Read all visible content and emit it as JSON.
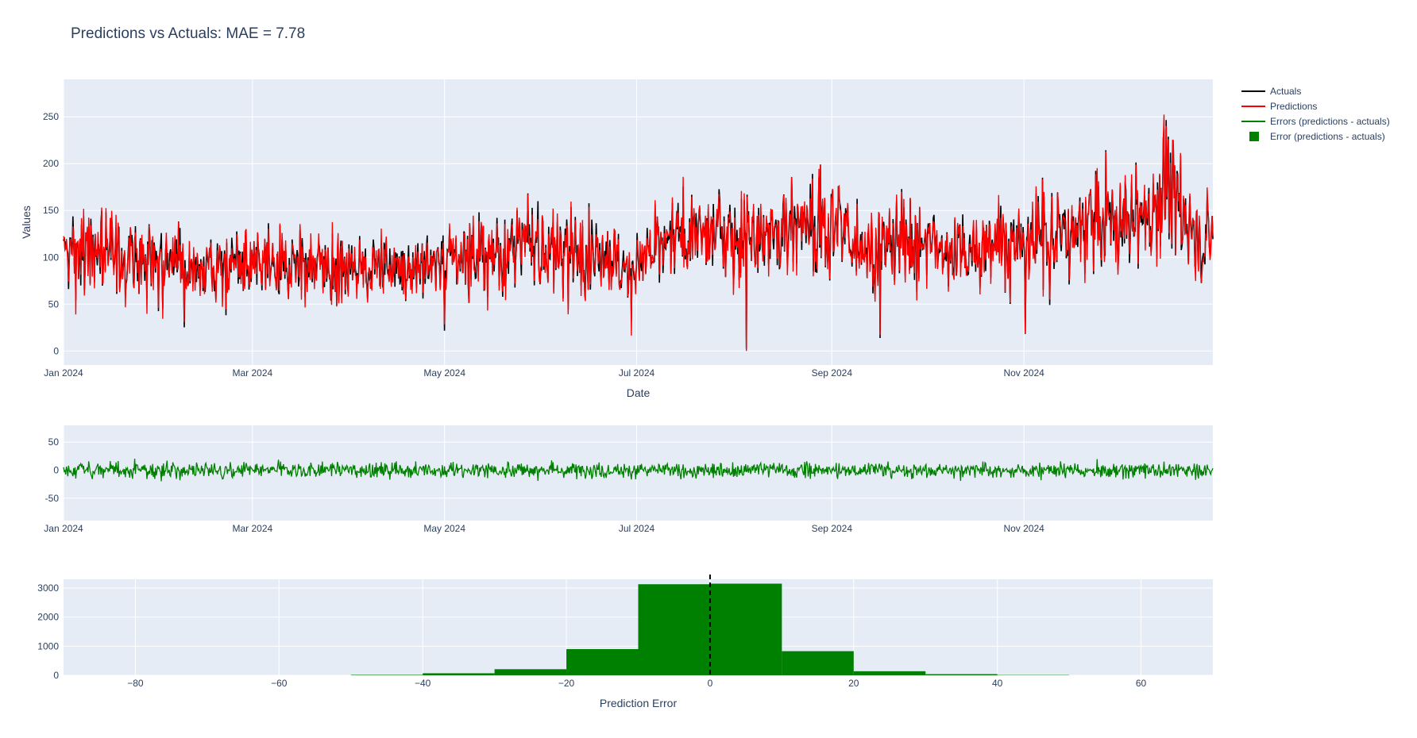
{
  "title": "Predictions vs Actuals: MAE = 7.78",
  "legend": {
    "position": "top-right",
    "items": [
      {
        "label": "Actuals",
        "kind": "line",
        "color": "#000000"
      },
      {
        "label": "Predictions",
        "kind": "line",
        "color": "#ff0000"
      },
      {
        "label": "Errors (predictions - actuals)",
        "kind": "line",
        "color": "#008000"
      },
      {
        "label": "Error (predictions - actuals)",
        "kind": "square",
        "color": "#008000"
      }
    ]
  },
  "colors": {
    "plot_bg": "#e5ecf6",
    "grid": "#ffffff",
    "text": "#2a3f5f",
    "actuals": "#000000",
    "predictions": "#ff0000",
    "errors": "#008000",
    "histogram": "#008000",
    "zero_line": "#000000"
  },
  "chart_data": [
    {
      "type": "line",
      "name": "top-timeseries",
      "xlabel": "Date",
      "ylabel": "Values",
      "x_range": [
        "2024-01-01",
        "2024-12-31"
      ],
      "ylim": [
        -15,
        290
      ],
      "x_ticks": [
        "Jan 2024",
        "Mar 2024",
        "May 2024",
        "Jul 2024",
        "Sep 2024",
        "Nov 2024"
      ],
      "y_ticks": [
        0,
        50,
        100,
        150,
        200,
        250
      ],
      "grid": true,
      "series": [
        {
          "name": "Actuals",
          "color": "#000000",
          "x": [
            "2024-01-01",
            "2024-01-11",
            "2024-01-21",
            "2024-01-31",
            "2024-02-10",
            "2024-02-20",
            "2024-03-01",
            "2024-03-11",
            "2024-03-21",
            "2024-03-31",
            "2024-04-10",
            "2024-04-20",
            "2024-04-30",
            "2024-05-10",
            "2024-05-20",
            "2024-05-30",
            "2024-06-09",
            "2024-06-19",
            "2024-06-29",
            "2024-07-09",
            "2024-07-19",
            "2024-07-29",
            "2024-08-08",
            "2024-08-18",
            "2024-08-28",
            "2024-09-07",
            "2024-09-17",
            "2024-09-27",
            "2024-10-07",
            "2024-10-17",
            "2024-10-27",
            "2024-11-06",
            "2024-11-16",
            "2024-11-26",
            "2024-12-06",
            "2024-12-16",
            "2024-12-26",
            "2024-12-31"
          ],
          "y": [
            98,
            112,
            100,
            97,
            92,
            90,
            88,
            94,
            95,
            86,
            92,
            88,
            95,
            104,
            108,
            112,
            110,
            106,
            85,
            112,
            118,
            122,
            130,
            128,
            138,
            124,
            112,
            118,
            105,
            115,
            112,
            120,
            124,
            135,
            140,
            175,
            118,
            125
          ]
        },
        {
          "name": "Predictions",
          "color": "#ff0000",
          "x": [
            "2024-01-01",
            "2024-01-11",
            "2024-01-21",
            "2024-01-31",
            "2024-02-10",
            "2024-02-20",
            "2024-03-01",
            "2024-03-11",
            "2024-03-21",
            "2024-03-31",
            "2024-04-10",
            "2024-04-20",
            "2024-04-30",
            "2024-05-10",
            "2024-05-20",
            "2024-05-30",
            "2024-06-09",
            "2024-06-19",
            "2024-06-29",
            "2024-07-09",
            "2024-07-19",
            "2024-07-29",
            "2024-08-08",
            "2024-08-18",
            "2024-08-28",
            "2024-09-07",
            "2024-09-17",
            "2024-09-27",
            "2024-10-07",
            "2024-10-17",
            "2024-10-27",
            "2024-11-06",
            "2024-11-16",
            "2024-11-26",
            "2024-12-06",
            "2024-12-16",
            "2024-12-26",
            "2024-12-31"
          ],
          "y": [
            102,
            110,
            102,
            98,
            90,
            92,
            90,
            92,
            96,
            88,
            90,
            90,
            97,
            102,
            106,
            114,
            108,
            108,
            98,
            115,
            130,
            128,
            132,
            130,
            142,
            126,
            110,
            120,
            108,
            116,
            114,
            122,
            122,
            134,
            142,
            170,
            120,
            130
          ]
        }
      ]
    },
    {
      "type": "line",
      "name": "error-timeseries",
      "x_range": [
        "2024-01-01",
        "2024-12-31"
      ],
      "ylim": [
        -90,
        80
      ],
      "x_ticks": [
        "Jan 2024",
        "Mar 2024",
        "May 2024",
        "Jul 2024",
        "Sep 2024",
        "Nov 2024"
      ],
      "y_ticks": [
        -50,
        0,
        50
      ],
      "grid": true,
      "series": [
        {
          "name": "Errors (predictions - actuals)",
          "color": "#008000",
          "x": [
            "2024-01-01",
            "2024-02-01",
            "2024-03-01",
            "2024-04-01",
            "2024-05-01",
            "2024-06-01",
            "2024-07-01",
            "2024-08-01",
            "2024-09-01",
            "2024-10-01",
            "2024-11-01",
            "2024-12-01",
            "2024-12-31"
          ],
          "y": [
            0,
            2,
            -1,
            1,
            0,
            2,
            4,
            1,
            3,
            -2,
            2,
            3,
            1
          ]
        }
      ]
    },
    {
      "type": "bar",
      "name": "error-histogram",
      "xlabel": "Prediction Error",
      "xlim": [
        -90,
        70
      ],
      "ylim": [
        0,
        3300
      ],
      "x_ticks": [
        -80,
        -60,
        -40,
        -20,
        0,
        20,
        40,
        60
      ],
      "y_ticks": [
        0,
        1000,
        2000,
        3000
      ],
      "grid": true,
      "bins": [
        {
          "start": -50,
          "end": -40,
          "count": 15
        },
        {
          "start": -40,
          "end": -30,
          "count": 70
        },
        {
          "start": -30,
          "end": -20,
          "count": 210
        },
        {
          "start": -20,
          "end": -10,
          "count": 900
        },
        {
          "start": -10,
          "end": 0,
          "count": 3130
        },
        {
          "start": 0,
          "end": 10,
          "count": 3150
        },
        {
          "start": 10,
          "end": 20,
          "count": 830
        },
        {
          "start": 20,
          "end": 30,
          "count": 140
        },
        {
          "start": 30,
          "end": 40,
          "count": 40
        },
        {
          "start": 40,
          "end": 50,
          "count": 10
        }
      ],
      "reference_line": {
        "x": 0,
        "style": "dashed",
        "color": "#000000"
      }
    }
  ]
}
